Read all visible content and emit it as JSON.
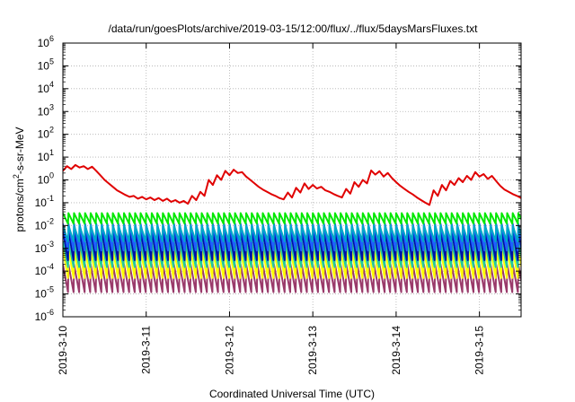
{
  "chart_data": {
    "type": "line",
    "title": "/data/run/goesPlots/archive/2019-03-15/12:00/flux/../flux/5daysMarsFluxes.txt",
    "xlabel": "Coordinated Universal Time (UTC)",
    "ylabel": {
      "prefix": "protons/cm",
      "sup": "2",
      "suffix": "-s-sr-MeV"
    },
    "x_ticks": [
      "2019-3-10",
      "2019-3-11",
      "2019-3-12",
      "2019-3-13",
      "2019-3-14",
      "2019-3-15"
    ],
    "xlim": [
      "2019-03-10T00:00",
      "2019-03-15T12:00"
    ],
    "y_scale": "log",
    "y_ticks": [
      {
        "base": "10",
        "exp": "-6"
      },
      {
        "base": "10",
        "exp": "-5"
      },
      {
        "base": "10",
        "exp": "-4"
      },
      {
        "base": "10",
        "exp": "-3"
      },
      {
        "base": "10",
        "exp": "-2"
      },
      {
        "base": "10",
        "exp": "-1"
      },
      {
        "base": "10",
        "exp": "0"
      },
      {
        "base": "10",
        "exp": "1"
      },
      {
        "base": "10",
        "exp": "2"
      },
      {
        "base": "10",
        "exp": "3"
      },
      {
        "base": "10",
        "exp": "4"
      },
      {
        "base": "10",
        "exp": "5"
      },
      {
        "base": "10",
        "exp": "6"
      }
    ],
    "ylim": [
      1e-06,
      1000000.0
    ],
    "grid": true,
    "legend": "none",
    "series": [
      {
        "color": "#e00000",
        "points": [
          [
            "2019-03-10T00:00",
            2.5
          ],
          [
            "2019-03-10T01:12",
            4.0
          ],
          [
            "2019-03-10T02:24",
            3.0
          ],
          [
            "2019-03-10T03:36",
            4.5
          ],
          [
            "2019-03-10T04:48",
            3.5
          ],
          [
            "2019-03-10T06:00",
            4.0
          ],
          [
            "2019-03-10T07:12",
            3.0
          ],
          [
            "2019-03-10T08:24",
            3.8
          ],
          [
            "2019-03-10T09:36",
            2.5
          ],
          [
            "2019-03-10T10:48",
            1.6
          ],
          [
            "2019-03-10T12:00",
            1.0
          ],
          [
            "2019-03-10T13:12",
            0.7
          ],
          [
            "2019-03-10T14:24",
            0.5
          ],
          [
            "2019-03-10T15:36",
            0.35
          ],
          [
            "2019-03-10T16:48",
            0.28
          ],
          [
            "2019-03-10T18:00",
            0.22
          ],
          [
            "2019-03-10T19:12",
            0.18
          ],
          [
            "2019-03-10T20:24",
            0.2
          ],
          [
            "2019-03-10T21:36",
            0.15
          ],
          [
            "2019-03-10T22:48",
            0.18
          ],
          [
            "2019-03-11T00:00",
            0.14
          ],
          [
            "2019-03-11T01:12",
            0.17
          ],
          [
            "2019-03-11T02:24",
            0.13
          ],
          [
            "2019-03-11T03:36",
            0.16
          ],
          [
            "2019-03-11T04:48",
            0.12
          ],
          [
            "2019-03-11T06:00",
            0.15
          ],
          [
            "2019-03-11T07:12",
            0.11
          ],
          [
            "2019-03-11T08:24",
            0.13
          ],
          [
            "2019-03-11T09:36",
            0.1
          ],
          [
            "2019-03-11T10:48",
            0.12
          ],
          [
            "2019-03-11T12:00",
            0.09
          ],
          [
            "2019-03-11T13:12",
            0.2
          ],
          [
            "2019-03-11T14:24",
            0.13
          ],
          [
            "2019-03-11T15:36",
            0.3
          ],
          [
            "2019-03-11T16:48",
            0.2
          ],
          [
            "2019-03-11T18:00",
            1.0
          ],
          [
            "2019-03-11T19:12",
            0.6
          ],
          [
            "2019-03-11T20:24",
            1.6
          ],
          [
            "2019-03-11T21:36",
            1.0
          ],
          [
            "2019-03-11T22:48",
            2.5
          ],
          [
            "2019-03-12T00:00",
            1.6
          ],
          [
            "2019-03-12T01:12",
            2.8
          ],
          [
            "2019-03-12T02:24",
            2.0
          ],
          [
            "2019-03-12T03:36",
            2.2
          ],
          [
            "2019-03-12T04:48",
            1.4
          ],
          [
            "2019-03-12T06:00",
            1.0
          ],
          [
            "2019-03-12T07:12",
            0.7
          ],
          [
            "2019-03-12T08:24",
            0.5
          ],
          [
            "2019-03-12T09:36",
            0.38
          ],
          [
            "2019-03-12T10:48",
            0.3
          ],
          [
            "2019-03-12T12:00",
            0.24
          ],
          [
            "2019-03-12T13:12",
            0.2
          ],
          [
            "2019-03-12T14:24",
            0.16
          ],
          [
            "2019-03-12T15:36",
            0.14
          ],
          [
            "2019-03-12T16:48",
            0.28
          ],
          [
            "2019-03-12T18:00",
            0.17
          ],
          [
            "2019-03-12T19:12",
            0.45
          ],
          [
            "2019-03-12T20:24",
            0.28
          ],
          [
            "2019-03-12T21:36",
            0.7
          ],
          [
            "2019-03-12T22:48",
            0.4
          ],
          [
            "2019-03-13T00:00",
            0.6
          ],
          [
            "2019-03-13T01:12",
            0.42
          ],
          [
            "2019-03-13T02:24",
            0.5
          ],
          [
            "2019-03-13T03:36",
            0.35
          ],
          [
            "2019-03-13T04:48",
            0.3
          ],
          [
            "2019-03-13T06:00",
            0.24
          ],
          [
            "2019-03-13T07:12",
            0.2
          ],
          [
            "2019-03-13T08:24",
            0.17
          ],
          [
            "2019-03-13T09:36",
            0.4
          ],
          [
            "2019-03-13T10:48",
            0.25
          ],
          [
            "2019-03-13T12:00",
            0.8
          ],
          [
            "2019-03-13T13:12",
            0.5
          ],
          [
            "2019-03-13T14:24",
            1.0
          ],
          [
            "2019-03-13T15:36",
            0.7
          ],
          [
            "2019-03-13T16:48",
            2.6
          ],
          [
            "2019-03-13T18:00",
            1.7
          ],
          [
            "2019-03-13T19:12",
            2.4
          ],
          [
            "2019-03-13T20:24",
            1.4
          ],
          [
            "2019-03-13T21:36",
            2.0
          ],
          [
            "2019-03-13T22:48",
            1.2
          ],
          [
            "2019-03-14T00:00",
            0.8
          ],
          [
            "2019-03-14T01:12",
            0.55
          ],
          [
            "2019-03-14T02:24",
            0.4
          ],
          [
            "2019-03-14T03:36",
            0.3
          ],
          [
            "2019-03-14T04:48",
            0.23
          ],
          [
            "2019-03-14T06:00",
            0.17
          ],
          [
            "2019-03-14T07:12",
            0.13
          ],
          [
            "2019-03-14T08:24",
            0.1
          ],
          [
            "2019-03-14T09:36",
            0.08
          ],
          [
            "2019-03-14T10:48",
            0.35
          ],
          [
            "2019-03-14T12:00",
            0.2
          ],
          [
            "2019-03-14T13:12",
            0.6
          ],
          [
            "2019-03-14T14:24",
            0.35
          ],
          [
            "2019-03-14T15:36",
            0.9
          ],
          [
            "2019-03-14T16:48",
            0.6
          ],
          [
            "2019-03-14T18:00",
            1.2
          ],
          [
            "2019-03-14T19:12",
            0.8
          ],
          [
            "2019-03-14T20:24",
            1.5
          ],
          [
            "2019-03-14T21:36",
            1.0
          ],
          [
            "2019-03-14T22:48",
            2.2
          ],
          [
            "2019-03-15T00:00",
            1.4
          ],
          [
            "2019-03-15T01:12",
            1.8
          ],
          [
            "2019-03-15T02:24",
            1.1
          ],
          [
            "2019-03-15T03:36",
            1.5
          ],
          [
            "2019-03-15T04:48",
            0.9
          ],
          [
            "2019-03-15T06:00",
            0.55
          ],
          [
            "2019-03-15T07:12",
            0.38
          ],
          [
            "2019-03-15T08:24",
            0.3
          ],
          [
            "2019-03-15T09:36",
            0.24
          ],
          [
            "2019-03-15T10:48",
            0.2
          ],
          [
            "2019-03-15T12:00",
            0.16
          ]
        ]
      },
      {
        "color": "#00e800",
        "pattern": "sawtooth",
        "period_hours": 1.6,
        "peak": 0.035,
        "trough": 0.012
      },
      {
        "color": "#00a8c8",
        "pattern": "sawtooth",
        "period_hours": 1.6,
        "peak": 0.01,
        "trough": 0.002
      },
      {
        "color": "#1e60ff",
        "pattern": "sawtooth",
        "period_hours": 1.6,
        "peak": 0.012,
        "trough": 0.0008
      },
      {
        "color": "#0010a8",
        "pattern": "sawtooth",
        "period_hours": 1.6,
        "peak": 0.006,
        "trough": 0.0003
      },
      {
        "color": "#20c8a0",
        "pattern": "sawtooth",
        "period_hours": 1.6,
        "peak": 0.002,
        "trough": 0.00015
      },
      {
        "color": "#ffff00",
        "pattern": "sawtooth",
        "period_hours": 1.6,
        "peak": 0.0009,
        "trough": 5e-05
      },
      {
        "color": "#9a3a6a",
        "pattern": "sawtooth",
        "period_hours": 1.6,
        "peak": 0.0002,
        "trough": 1.2e-05
      }
    ]
  }
}
